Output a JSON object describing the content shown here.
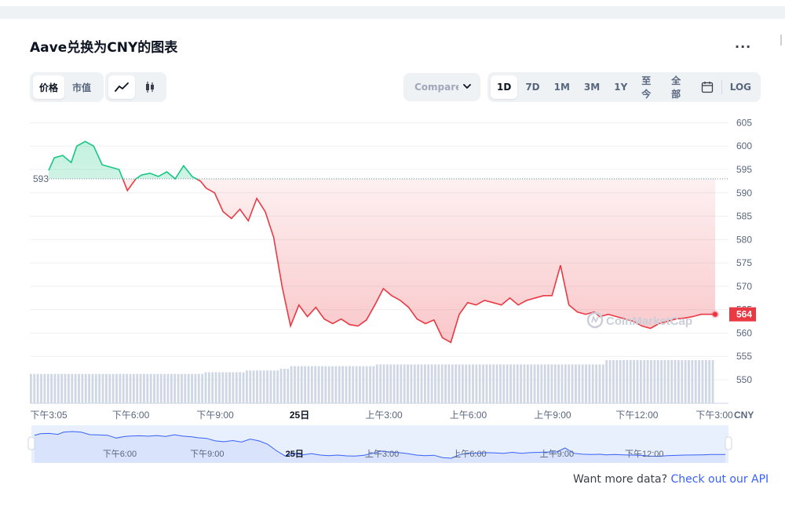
{
  "header": {
    "title": "Aave兑换为CNY的图表",
    "more_label": "..."
  },
  "toolbar": {
    "view_tabs": [
      "价格",
      "市值"
    ],
    "active_view": 0,
    "chart_kinds": [
      "line-chart-icon",
      "candlestick-icon"
    ],
    "active_kind": 0,
    "compare_label": "Compare with",
    "ranges": [
      "1D",
      "7D",
      "1M",
      "3M",
      "1Y",
      "至今",
      "全部"
    ],
    "active_range": 0,
    "calendar_icon": "calendar-icon",
    "log_label": "LOG"
  },
  "colors": {
    "up": "#16c784",
    "down": "#ea3943",
    "volume": "#cfd6e4",
    "navigator_fill": "#e8effd",
    "navigator_line": "#3861fb"
  },
  "chart_data": {
    "type": "line",
    "title": "Aave兑换为CNY的图表",
    "baseline": 593,
    "baseline_label": "593",
    "current_price_label": "564",
    "currency_label": "CNY",
    "ylim": [
      545,
      607
    ],
    "y_ticks": [
      605,
      600,
      595,
      590,
      585,
      580,
      575,
      570,
      565,
      560,
      555,
      550
    ],
    "x_ticks": [
      {
        "label": "下午3:05",
        "h": 0
      },
      {
        "label": "下午6:00",
        "h": 2.92
      },
      {
        "label": "下午9:00",
        "h": 5.92
      },
      {
        "label": "25日",
        "h": 8.92,
        "bold": true
      },
      {
        "label": "上午3:00",
        "h": 11.92
      },
      {
        "label": "上午6:00",
        "h": 14.92
      },
      {
        "label": "上午9:00",
        "h": 17.92
      },
      {
        "label": "下午12:00",
        "h": 20.92
      },
      {
        "label": "下午3:00",
        "h": 23.92
      }
    ],
    "price_x_hours": [
      0,
      0.2,
      0.5,
      0.8,
      1.0,
      1.3,
      1.6,
      1.9,
      2.2,
      2.5,
      2.8,
      3.1,
      3.3,
      3.6,
      3.9,
      4.2,
      4.5,
      4.8,
      5.1,
      5.4,
      5.6,
      5.9,
      6.2,
      6.5,
      6.8,
      7.1,
      7.4,
      7.7,
      8.0,
      8.3,
      8.6,
      8.9,
      9.2,
      9.5,
      9.8,
      10.1,
      10.4,
      10.7,
      11.0,
      11.3,
      11.6,
      11.9,
      12.2,
      12.5,
      12.8,
      13.1,
      13.4,
      13.7,
      14.0,
      14.3,
      14.6,
      14.9,
      15.2,
      15.5,
      15.8,
      16.1,
      16.4,
      16.7,
      17.0,
      17.3,
      17.6,
      17.9,
      18.2,
      18.5,
      18.8,
      19.1,
      19.4,
      19.6,
      19.9,
      20.2,
      20.5,
      20.8,
      21.1,
      21.4,
      21.7,
      22.0,
      22.3,
      22.6,
      22.9,
      23.2,
      23.5,
      23.7
    ],
    "price_values": [
      594.8,
      597.5,
      598.0,
      596.5,
      600.0,
      601.0,
      600.0,
      596.0,
      595.5,
      595.0,
      590.5,
      593.0,
      593.8,
      594.2,
      593.5,
      594.5,
      593.0,
      595.8,
      593.5,
      592.5,
      591.0,
      590.0,
      586.0,
      584.5,
      586.5,
      584.0,
      588.8,
      586.0,
      580.5,
      570.0,
      561.5,
      566.0,
      563.5,
      565.5,
      563.0,
      562.0,
      563.0,
      561.8,
      561.5,
      562.8,
      566.0,
      569.5,
      568.0,
      567.0,
      565.5,
      563.0,
      562.0,
      562.8,
      559.0,
      558.0,
      564.0,
      566.5,
      566.0,
      567.0,
      566.5,
      566.0,
      567.5,
      566.0,
      567.0,
      567.5,
      568.0,
      568.0,
      574.5,
      566.0,
      564.5,
      564.0,
      564.5,
      563.5,
      564.0,
      563.5,
      563.0,
      562.5,
      561.5,
      561.0,
      562.0,
      562.5,
      563.0,
      563.2,
      563.5,
      564.0,
      564.0,
      564.0
    ],
    "volume_steps": [
      {
        "from_h": 0,
        "to_h": 6,
        "level": 0.34
      },
      {
        "from_h": 6,
        "to_h": 7.5,
        "level": 0.36
      },
      {
        "from_h": 7.5,
        "to_h": 8.6,
        "level": 0.38
      },
      {
        "from_h": 8.6,
        "to_h": 9.0,
        "level": 0.4
      },
      {
        "from_h": 9.0,
        "to_h": 12.0,
        "level": 0.43
      },
      {
        "from_h": 12.0,
        "to_h": 20.0,
        "level": 0.45
      },
      {
        "from_h": 20.0,
        "to_h": 23.7,
        "level": 0.5
      }
    ],
    "navigator_labels": [
      {
        "label": "下午6:00",
        "h": 2.92
      },
      {
        "label": "下午9:00",
        "h": 5.92
      },
      {
        "label": "25日",
        "h": 8.92,
        "bold": true
      },
      {
        "label": "上午3:00",
        "h": 11.92
      },
      {
        "label": "上午6:00",
        "h": 14.92
      },
      {
        "label": "上午9:00",
        "h": 17.92
      },
      {
        "label": "下午12:00",
        "h": 20.92
      }
    ]
  },
  "footer": {
    "question": "Want more data?",
    "link": "Check out our API"
  }
}
